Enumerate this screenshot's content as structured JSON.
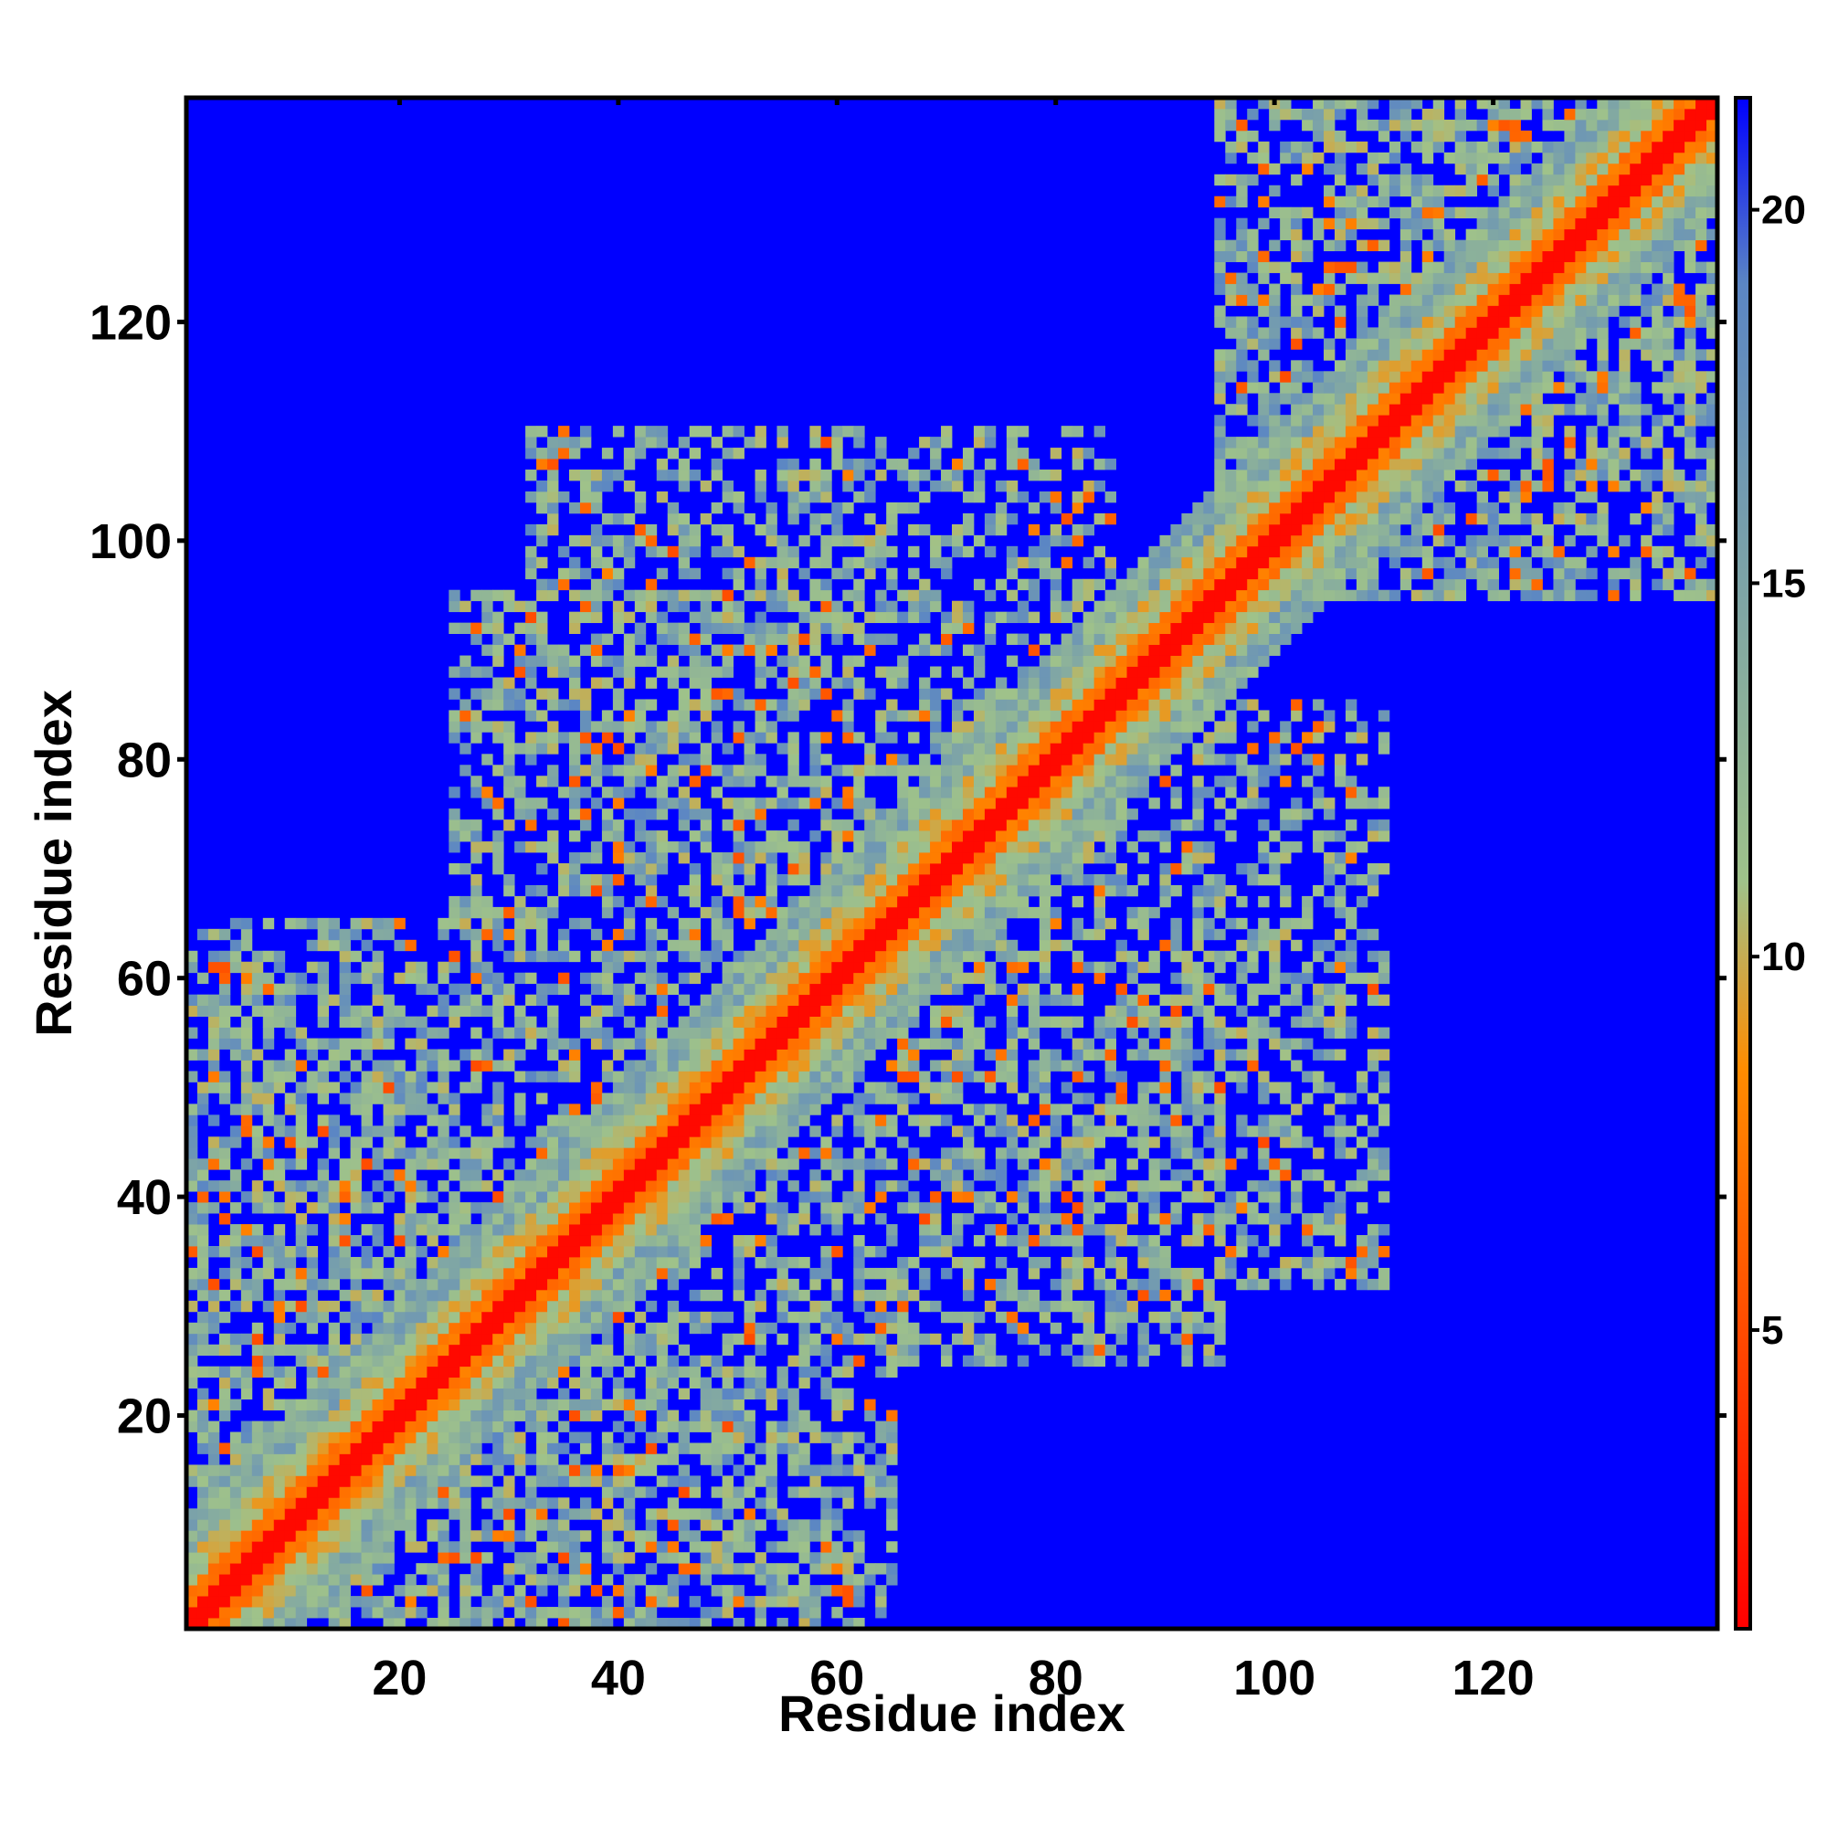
{
  "chart_data": {
    "type": "heatmap",
    "title": "",
    "xlabel": "Residue index",
    "ylabel": "Residue index",
    "xlim": [
      1,
      140
    ],
    "ylim": [
      1,
      140
    ],
    "x_ticks": [
      20,
      40,
      60,
      80,
      100,
      120
    ],
    "y_ticks": [
      20,
      40,
      60,
      80,
      100,
      120
    ],
    "matrix_size": 140,
    "colorbar": {
      "range": [
        1,
        21.5
      ],
      "ticks": [
        5,
        10,
        15,
        20
      ],
      "colors": [
        "#ff0000",
        "#ff8c00",
        "#9fc28a",
        "#5b86c4",
        "#0000ff"
      ],
      "color_stops": [
        1,
        8.5,
        11,
        19,
        21.5
      ]
    },
    "structure": {
      "diagonal_value": 1.5,
      "near_diagonal_value": 6.5,
      "background_value": 21.5,
      "contact_regions": [
        {
          "x": [
            1,
            25
          ],
          "y": [
            1,
            62
          ],
          "density": 0.65
        },
        {
          "x": [
            25,
            75
          ],
          "y": [
            40,
            95
          ],
          "density": 0.55
        },
        {
          "x": [
            5,
            65
          ],
          "y": [
            1,
            42
          ],
          "density": 0.55
        },
        {
          "x": [
            50,
            110
          ],
          "y": [
            32,
            70
          ],
          "density": 0.5
        },
        {
          "x": [
            95,
            140
          ],
          "y": [
            95,
            140
          ],
          "density": 0.6
        },
        {
          "x": [
            55,
            85
          ],
          "y": [
            80,
            110
          ],
          "density": 0.4
        }
      ]
    }
  },
  "colors": {
    "background_fill": "#0000ff",
    "frame": "#000000"
  }
}
